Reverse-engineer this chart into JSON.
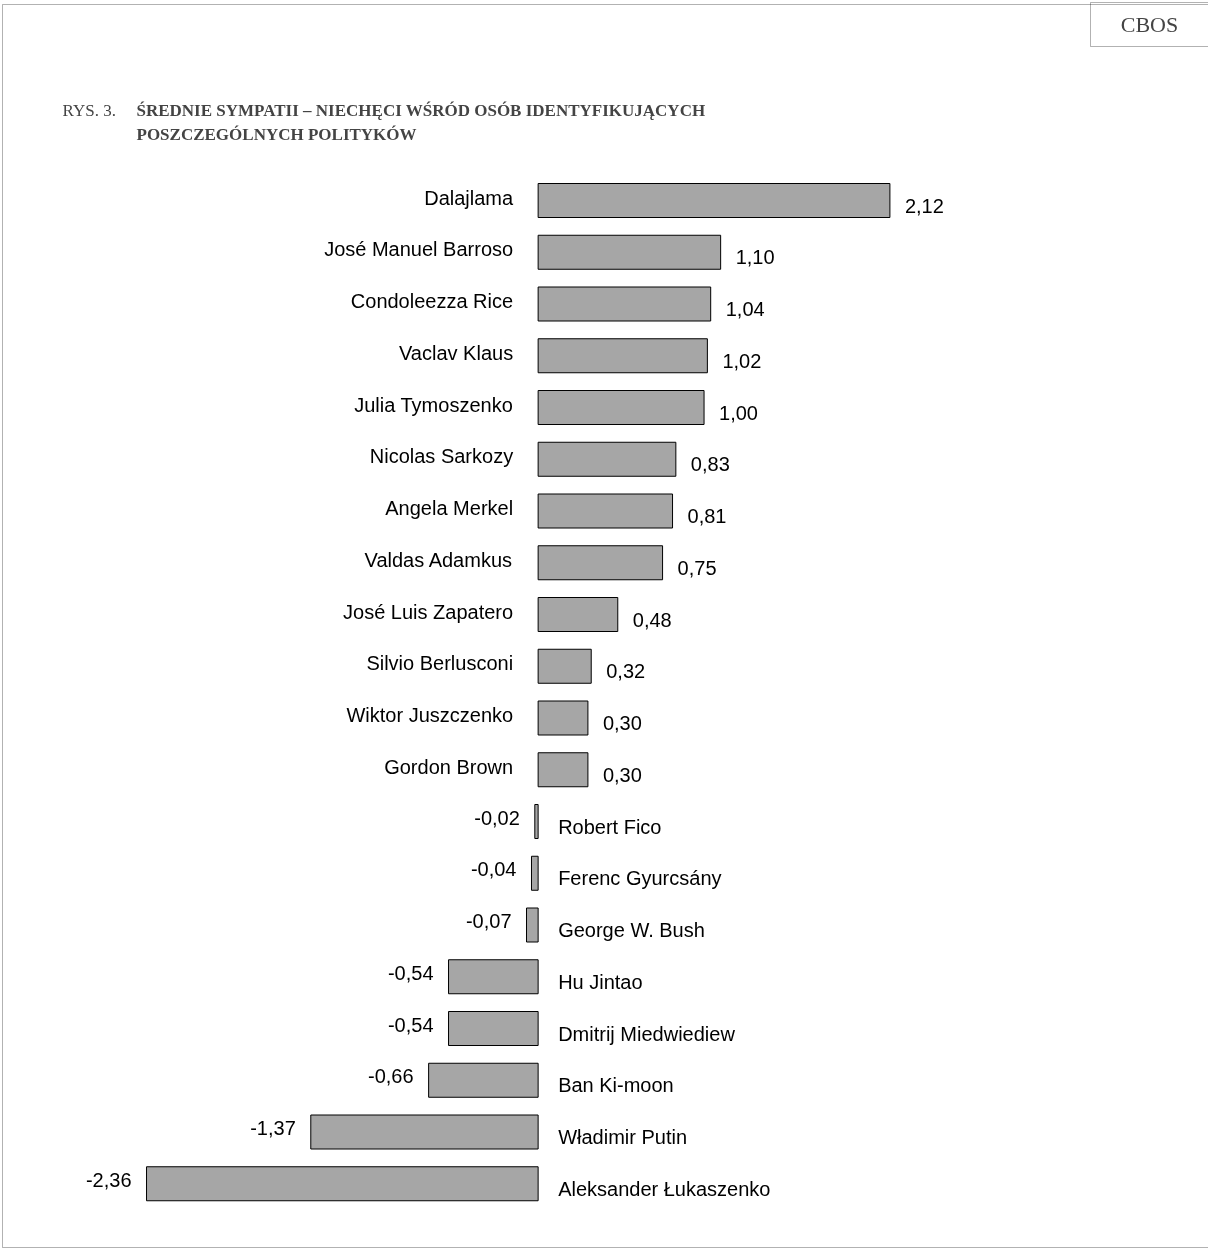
{
  "chart_data": {
    "type": "bar",
    "orientation": "horizontal",
    "title": "ŚREDNIE SYMPATII – NIECHĘCI WŚRÓD OSÓB IDENTYFIKUJĄCYCH\nPOSZCZEGÓLNYCH POLITYKÓW",
    "subtitle": "RYS. 3.",
    "annotations": [
      "CBOS"
    ],
    "categories": [
      "Dalajlama",
      "José Manuel Barroso",
      "Condoleezza Rice",
      "Vaclav Klaus",
      "Julia Tymoszenko",
      "Nicolas Sarkozy",
      "Angela Merkel",
      "Valdas Adamkus",
      "José Luis Zapatero",
      "Silvio Berlusconi",
      "Wiktor Juszczenko",
      "Gordon Brown",
      "Robert Fico",
      "Ferenc Gyurcsány",
      "George W. Bush",
      "Hu Jintao",
      "Dmitrij Miedwiediew",
      "Ban Ki-moon",
      "Władimir Putin",
      "Aleksander Łukaszenko"
    ],
    "values": [
      2.12,
      1.1,
      1.04,
      1.02,
      1.0,
      0.83,
      0.81,
      0.75,
      0.48,
      0.32,
      0.3,
      0.3,
      -0.02,
      -0.04,
      -0.07,
      -0.54,
      -0.54,
      -0.66,
      -1.37,
      -2.36
    ],
    "value_labels": [
      "2,12",
      "1,10",
      "1,04",
      "1,02",
      "1,00",
      "0,83",
      "0,81",
      "0,75",
      "0,48",
      "0,32",
      "0,30",
      "0,30",
      "-0,02",
      "-0,04",
      "-0,07",
      "-0,54",
      "-0,54",
      "-0,66",
      "-1,37",
      "-2,36"
    ],
    "color": "#a6a6a6",
    "tick_labels": false,
    "grid": false
  }
}
